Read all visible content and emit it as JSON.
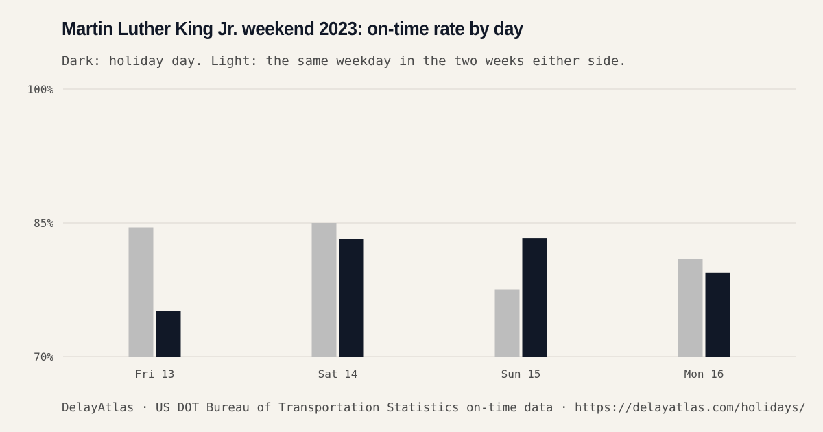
{
  "colors": {
    "background": "#f6f3ed",
    "holiday": "#111827",
    "baseline": "#bdbdbd",
    "grid": "#e3e0da",
    "text": "#4b4b4b",
    "title": "#111827"
  },
  "chart_data": {
    "type": "bar",
    "title": "Martin Luther King Jr. weekend 2023: on-time rate by day",
    "subtitle": "Dark: holiday day. Light: the same weekday in the two weeks either side.",
    "categories": [
      "Fri 13",
      "Sat 14",
      "Sun 15",
      "Mon 16"
    ],
    "series": [
      {
        "name": "",
        "color": "#bdbdbd",
        "values": [
          84.5,
          85.0,
          77.5,
          81.0
        ]
      },
      {
        "name": "",
        "color": "#111827",
        "values": [
          75.1,
          83.2,
          83.3,
          79.4
        ]
      }
    ],
    "ylim": [
      70,
      100
    ],
    "yticks": [
      "70%",
      "85%",
      "100%"
    ],
    "ytick_values": [
      70,
      85,
      100
    ],
    "grid": true
  },
  "footer": "DelayAtlas · US DOT Bureau of Transportation Statistics on-time data · https://delayatlas.com/holidays/"
}
